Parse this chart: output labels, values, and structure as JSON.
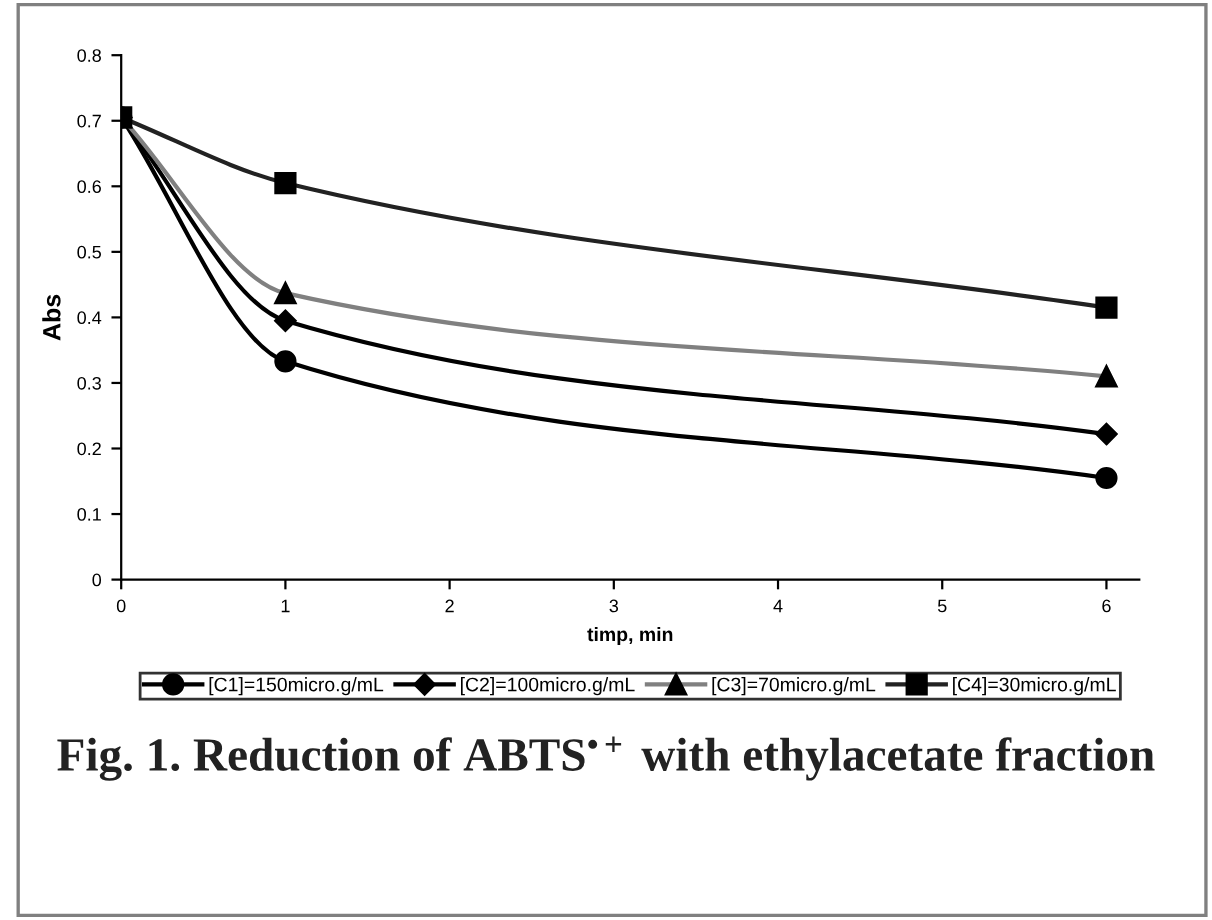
{
  "chart_data": {
    "type": "line",
    "x": [
      0,
      1,
      6
    ],
    "series": [
      {
        "name": "[C1]=150micro.g/mL",
        "color": "#000000",
        "marker": "circle",
        "values": [
          0.705,
          0.333,
          0.155
        ]
      },
      {
        "name": "[C2]=100micro.g/mL",
        "color": "#000000",
        "marker": "diamond",
        "values": [
          0.705,
          0.395,
          0.222
        ]
      },
      {
        "name": "[C3]=70micro.g/mL",
        "color": "#808080",
        "marker": "triangle",
        "values": [
          0.705,
          0.437,
          0.31
        ]
      },
      {
        "name": "[C4]=30micro.g/mL",
        "color": "#222222",
        "marker": "square",
        "values": [
          0.705,
          0.605,
          0.415
        ]
      }
    ],
    "xlabel": "timp, min",
    "ylabel": "Abs",
    "xlim": [
      0,
      6.2
    ],
    "xticks": [
      0,
      1,
      2,
      3,
      4,
      5,
      6
    ],
    "ylim": [
      0,
      0.8
    ],
    "yticks": [
      0,
      0.1,
      0.2,
      0.3,
      0.4,
      0.5,
      0.6,
      0.7,
      0.8
    ],
    "grid": false,
    "legend": "bottom",
    "line_style": "solid",
    "annotations": [
      "Fig. 1. Reduction of ABTS$^{•+}$ with ethylacetate fraction"
    ]
  }
}
